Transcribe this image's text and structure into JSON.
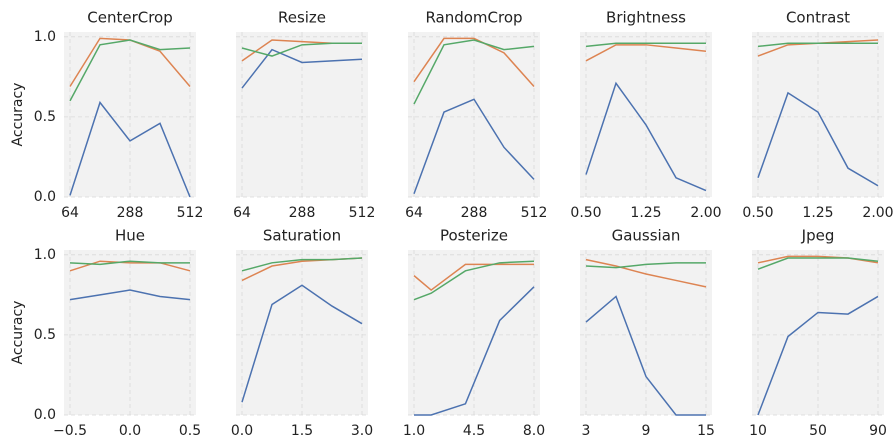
{
  "chart_data": [
    {
      "type": "line",
      "title": "CenterCrop",
      "ylabel": "Accuracy",
      "x": [
        64,
        176,
        288,
        400,
        512
      ],
      "xlim": [
        41.6,
        534.4
      ],
      "xticks": [
        64,
        288,
        512
      ],
      "ylim": [
        0,
        1.03
      ],
      "yticks": [
        {
          "value": 0,
          "label": "0.0"
        },
        {
          "value": 0.5,
          "label": "0.5"
        },
        {
          "value": 1,
          "label": "1.0"
        }
      ],
      "grid": true,
      "series": [
        {
          "color": "#4c72b0",
          "values": [
            0.01,
            0.59,
            0.35,
            0.46,
            0.0
          ]
        },
        {
          "color": "#dd8452",
          "values": [
            0.69,
            0.99,
            0.98,
            0.91,
            0.69
          ]
        },
        {
          "color": "#55a868",
          "values": [
            0.6,
            0.95,
            0.98,
            0.92,
            0.93
          ]
        }
      ]
    },
    {
      "type": "line",
      "title": "Resize",
      "x": [
        64,
        176,
        288,
        400,
        512
      ],
      "xlim": [
        41.6,
        534.4
      ],
      "xticks": [
        64,
        288,
        512
      ],
      "ylim": [
        0,
        1.03
      ],
      "yticks": [
        0,
        0.5,
        1
      ],
      "grid": true,
      "series": [
        {
          "color": "#4c72b0",
          "values": [
            0.68,
            0.92,
            0.84,
            0.85,
            0.86
          ]
        },
        {
          "color": "#dd8452",
          "values": [
            0.85,
            0.98,
            0.97,
            0.96,
            0.96
          ]
        },
        {
          "color": "#55a868",
          "values": [
            0.93,
            0.88,
            0.95,
            0.96,
            0.96
          ]
        }
      ]
    },
    {
      "type": "line",
      "title": "RandomCrop",
      "x": [
        64,
        176,
        288,
        400,
        512
      ],
      "xlim": [
        41.6,
        534.4
      ],
      "xticks": [
        64,
        288,
        512
      ],
      "ylim": [
        0,
        1.03
      ],
      "yticks": [
        0,
        0.5,
        1
      ],
      "grid": true,
      "series": [
        {
          "color": "#4c72b0",
          "values": [
            0.02,
            0.53,
            0.61,
            0.31,
            0.11
          ]
        },
        {
          "color": "#dd8452",
          "values": [
            0.72,
            0.99,
            0.99,
            0.9,
            0.69
          ]
        },
        {
          "color": "#55a868",
          "values": [
            0.58,
            0.95,
            0.98,
            0.92,
            0.94
          ]
        }
      ]
    },
    {
      "type": "line",
      "title": "Brightness",
      "x": [
        0.5,
        0.875,
        1.25,
        1.625,
        2.0
      ],
      "xlim": [
        0.425,
        2.075
      ],
      "xticks": [
        {
          "value": 0.5,
          "label": "0.50"
        },
        {
          "value": 1.25,
          "label": "1.25"
        },
        {
          "value": 2,
          "label": "2.00"
        }
      ],
      "ylim": [
        0,
        1.03
      ],
      "yticks": [
        0,
        0.5,
        1
      ],
      "grid": true,
      "series": [
        {
          "color": "#4c72b0",
          "values": [
            0.14,
            0.71,
            0.45,
            0.12,
            0.04
          ]
        },
        {
          "color": "#dd8452",
          "values": [
            0.85,
            0.95,
            0.95,
            0.93,
            0.91
          ]
        },
        {
          "color": "#55a868",
          "values": [
            0.94,
            0.96,
            0.96,
            0.96,
            0.96
          ]
        }
      ]
    },
    {
      "type": "line",
      "title": "Contrast",
      "x": [
        0.5,
        0.875,
        1.25,
        1.625,
        2.0
      ],
      "xlim": [
        0.425,
        2.075
      ],
      "xticks": [
        {
          "value": 0.5,
          "label": "0.50"
        },
        {
          "value": 1.25,
          "label": "1.25"
        },
        {
          "value": 2,
          "label": "2.00"
        }
      ],
      "ylim": [
        0,
        1.03
      ],
      "yticks": [
        0,
        0.5,
        1
      ],
      "grid": true,
      "series": [
        {
          "color": "#4c72b0",
          "values": [
            0.12,
            0.65,
            0.53,
            0.18,
            0.07
          ]
        },
        {
          "color": "#dd8452",
          "values": [
            0.88,
            0.95,
            0.96,
            0.97,
            0.98
          ]
        },
        {
          "color": "#55a868",
          "values": [
            0.94,
            0.96,
            0.96,
            0.96,
            0.96
          ]
        }
      ]
    },
    {
      "type": "line",
      "title": "Hue",
      "ylabel": "Accuracy",
      "x": [
        -0.5,
        -0.25,
        0,
        0.25,
        0.5
      ],
      "xlim": [
        -0.55,
        0.55
      ],
      "xticks": [
        {
          "value": -0.5,
          "label": "−0.5"
        },
        {
          "value": 0,
          "label": "0.0"
        },
        0.5
      ],
      "ylim": [
        0,
        1.03
      ],
      "yticks": [
        {
          "value": 0,
          "label": "0.0"
        },
        {
          "value": 0.5,
          "label": "0.5"
        },
        {
          "value": 1,
          "label": "1.0"
        }
      ],
      "grid": true,
      "series": [
        {
          "color": "#4c72b0",
          "values": [
            0.72,
            0.75,
            0.78,
            0.74,
            0.72
          ]
        },
        {
          "color": "#dd8452",
          "values": [
            0.9,
            0.96,
            0.95,
            0.95,
            0.9
          ]
        },
        {
          "color": "#55a868",
          "values": [
            0.95,
            0.94,
            0.96,
            0.95,
            0.95
          ]
        }
      ]
    },
    {
      "type": "line",
      "title": "Saturation",
      "x": [
        0,
        0.75,
        1.5,
        2.25,
        3.0
      ],
      "xlim": [
        -0.15,
        3.15
      ],
      "xticks": [
        {
          "value": 0,
          "label": "0.0"
        },
        1.5,
        {
          "value": 3,
          "label": "3.0"
        }
      ],
      "ylim": [
        0,
        1.03
      ],
      "yticks": [
        0,
        0.5,
        1
      ],
      "grid": true,
      "series": [
        {
          "color": "#4c72b0",
          "values": [
            0.08,
            0.69,
            0.81,
            0.68,
            0.57
          ]
        },
        {
          "color": "#dd8452",
          "values": [
            0.84,
            0.93,
            0.96,
            0.97,
            0.98
          ]
        },
        {
          "color": "#55a868",
          "values": [
            0.9,
            0.95,
            0.97,
            0.97,
            0.98
          ]
        }
      ]
    },
    {
      "type": "line",
      "title": "Posterize",
      "x": [
        1,
        2,
        4,
        6,
        8
      ],
      "xlim": [
        0.65,
        8.35
      ],
      "xticks": [
        {
          "value": 1,
          "label": "1.0"
        },
        4.5,
        {
          "value": 8,
          "label": "8.0"
        }
      ],
      "ylim": [
        0,
        1.03
      ],
      "yticks": [
        0,
        0.5,
        1
      ],
      "grid": true,
      "series": [
        {
          "color": "#4c72b0",
          "values": [
            0.0,
            0.0,
            0.07,
            0.59,
            0.8
          ]
        },
        {
          "color": "#dd8452",
          "values": [
            0.87,
            0.78,
            0.94,
            0.94,
            0.94
          ]
        },
        {
          "color": "#55a868",
          "values": [
            0.72,
            0.76,
            0.9,
            0.95,
            0.96
          ]
        }
      ]
    },
    {
      "type": "line",
      "title": "Gaussian",
      "x": [
        3,
        6,
        9,
        12,
        15
      ],
      "xlim": [
        2.4,
        15.6
      ],
      "xticks": [
        3,
        9,
        15
      ],
      "ylim": [
        0,
        1.03
      ],
      "yticks": [
        0,
        0.5,
        1
      ],
      "grid": true,
      "series": [
        {
          "color": "#4c72b0",
          "values": [
            0.58,
            0.74,
            0.24,
            0.0,
            0.0
          ]
        },
        {
          "color": "#dd8452",
          "values": [
            0.97,
            0.93,
            0.88,
            0.84,
            0.8
          ]
        },
        {
          "color": "#55a868",
          "values": [
            0.93,
            0.92,
            0.94,
            0.95,
            0.95
          ]
        }
      ]
    },
    {
      "type": "line",
      "title": "Jpeg",
      "x": [
        10,
        30,
        50,
        70,
        90
      ],
      "xlim": [
        6,
        94
      ],
      "xticks": [
        10,
        50,
        90
      ],
      "ylim": [
        0,
        1.03
      ],
      "yticks": [
        0,
        0.5,
        1
      ],
      "grid": true,
      "series": [
        {
          "color": "#4c72b0",
          "values": [
            0.0,
            0.49,
            0.64,
            0.63,
            0.74
          ]
        },
        {
          "color": "#dd8452",
          "values": [
            0.95,
            0.99,
            0.99,
            0.98,
            0.95
          ]
        },
        {
          "color": "#55a868",
          "values": [
            0.91,
            0.98,
            0.98,
            0.98,
            0.96
          ]
        }
      ]
    }
  ]
}
